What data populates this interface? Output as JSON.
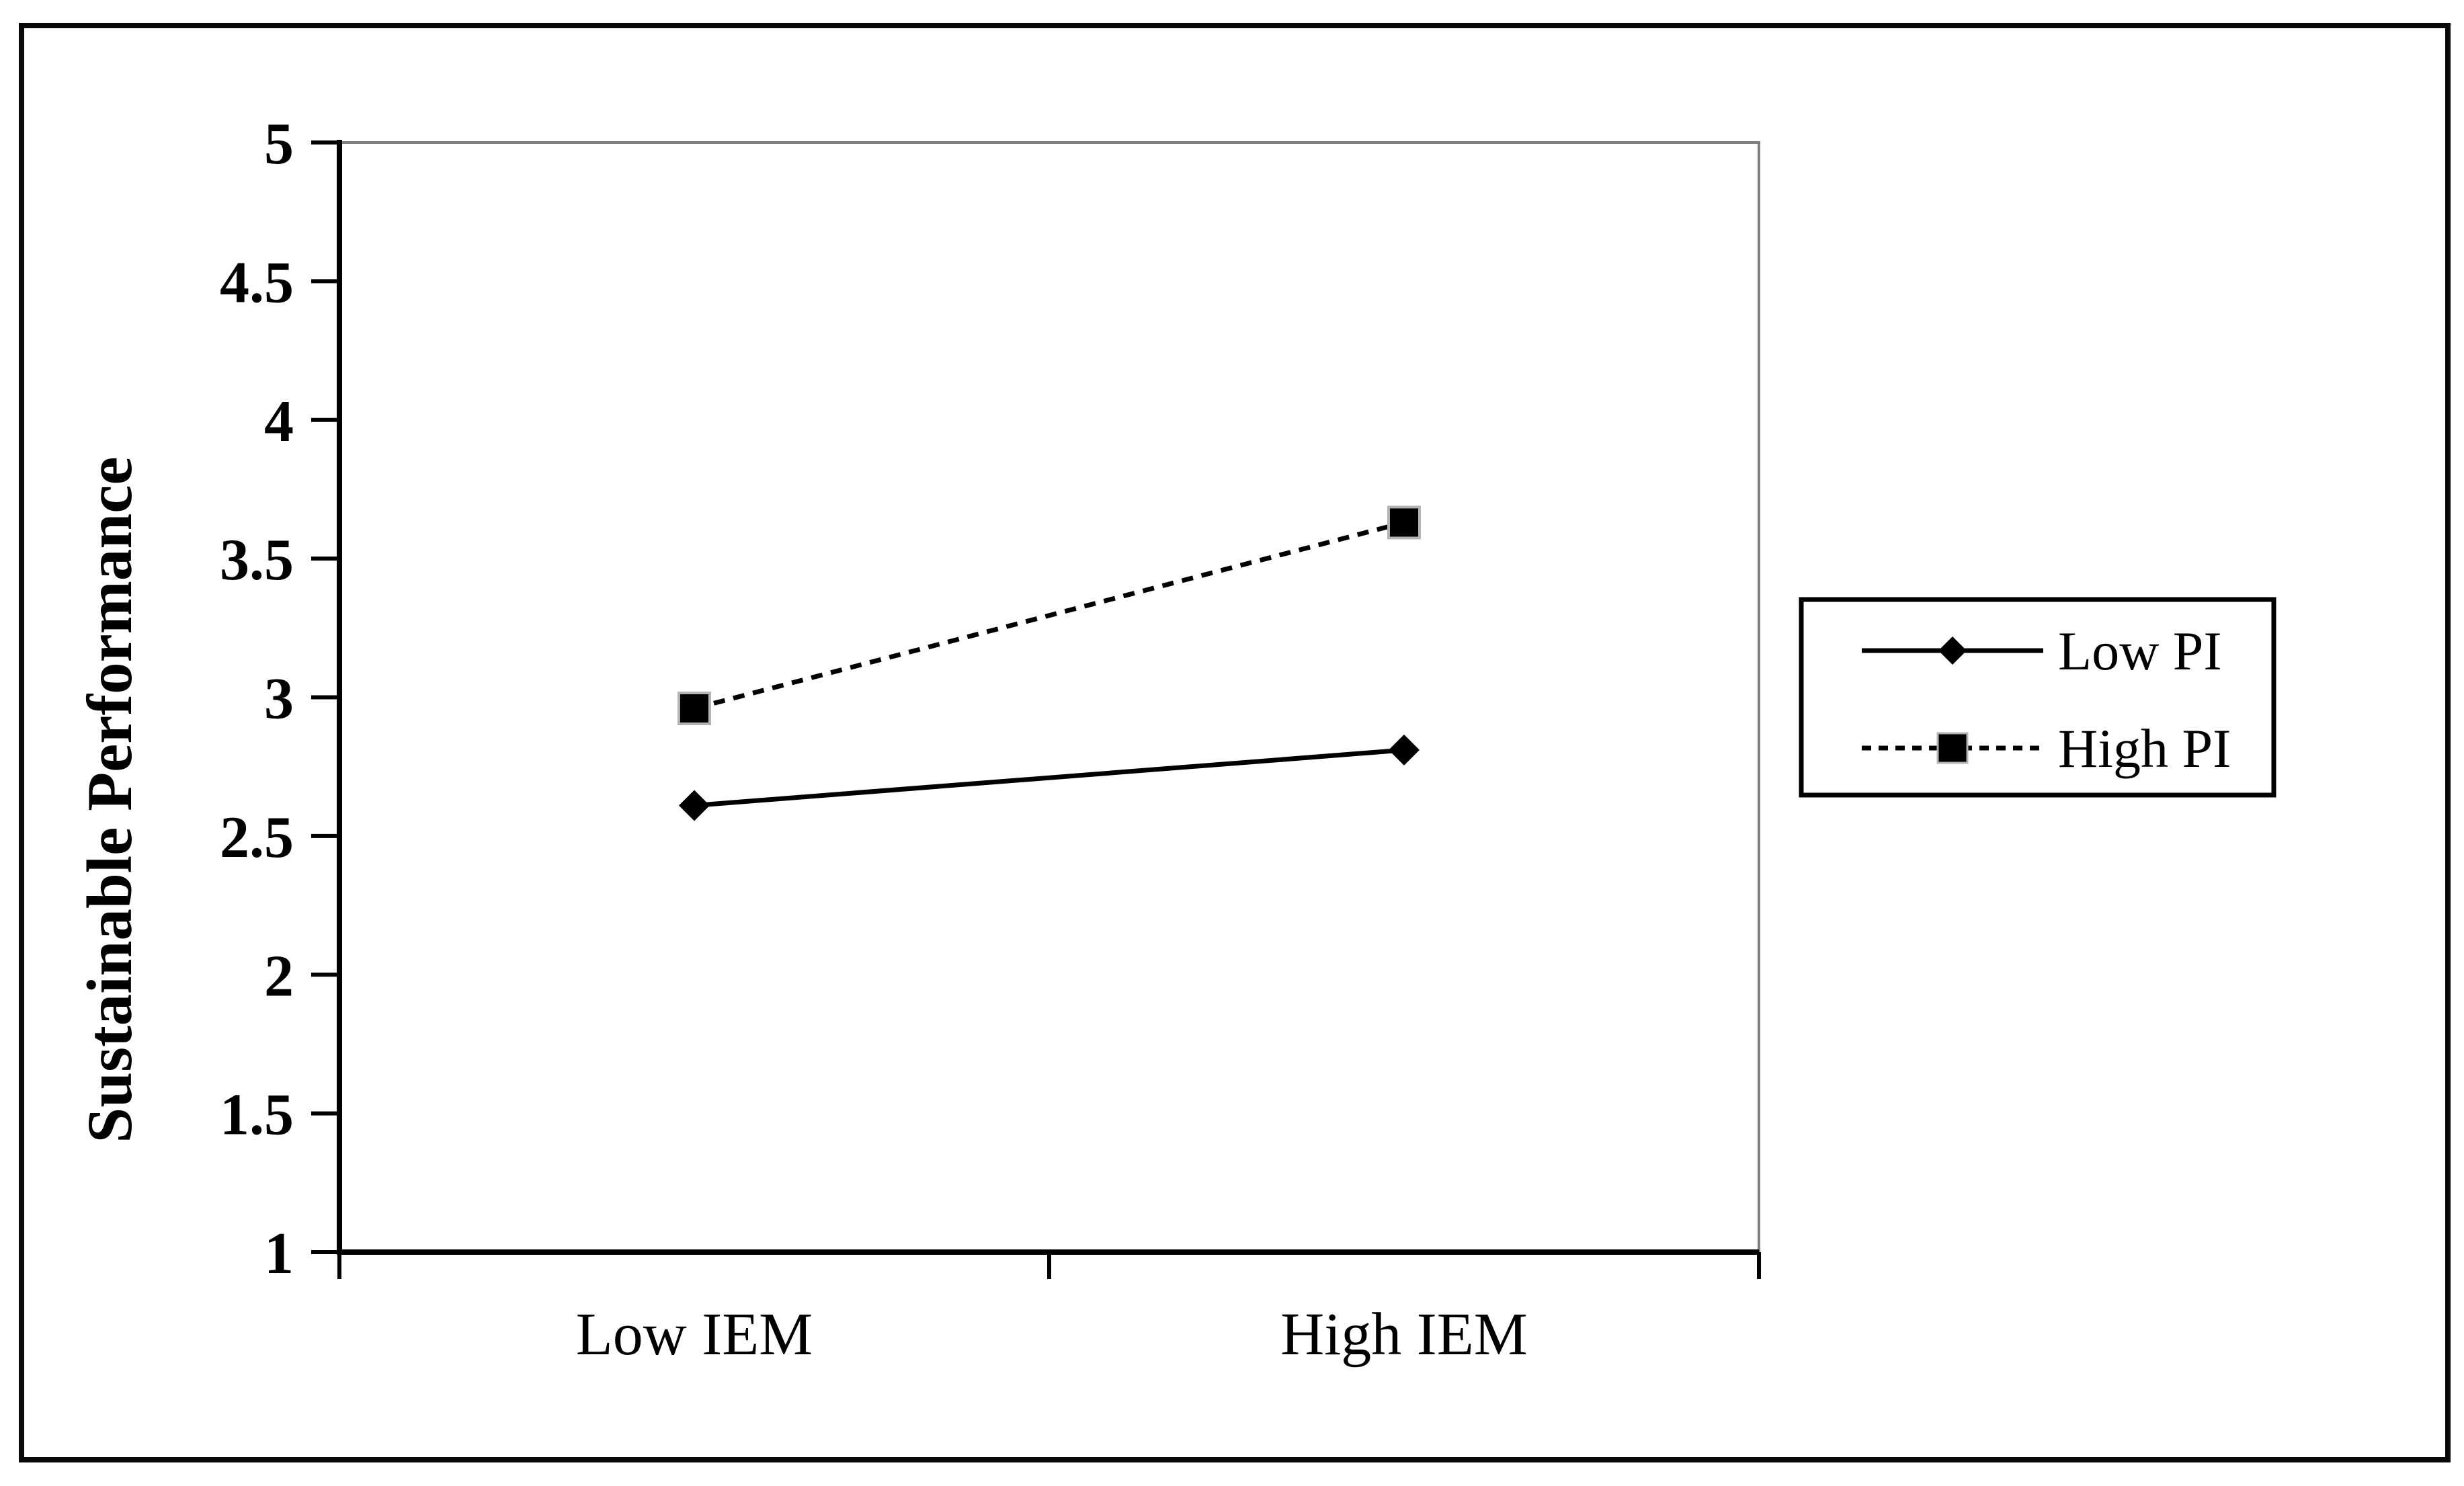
{
  "chart_data": {
    "type": "line",
    "title": "",
    "categories": [
      "Low IEM",
      "High IEM"
    ],
    "series": [
      {
        "name": "Low PI",
        "marker": "diamond",
        "line_style": "solid",
        "color": "#000000",
        "values": [
          2.61,
          2.81
        ]
      },
      {
        "name": "High PI",
        "marker": "square",
        "line_style": "dashed",
        "color": "#000000",
        "values": [
          2.96,
          3.63
        ]
      }
    ],
    "xlabel": "",
    "ylabel": "Sustainable Performance",
    "ylim": [
      1,
      5
    ],
    "ytick_step": 0.5,
    "ytick_labels": [
      "5",
      "4.5",
      "4",
      "3.5",
      "3",
      "2.5",
      "2",
      "1.5",
      "1"
    ],
    "grid": false,
    "legend_position": "right-outside",
    "colors": {
      "axis": "#000000",
      "plot_border": "#808080",
      "figure_border": "#0a0a0a",
      "text": "#000000",
      "background": "#ffffff",
      "marker_halo": "#b3b3b3"
    }
  }
}
